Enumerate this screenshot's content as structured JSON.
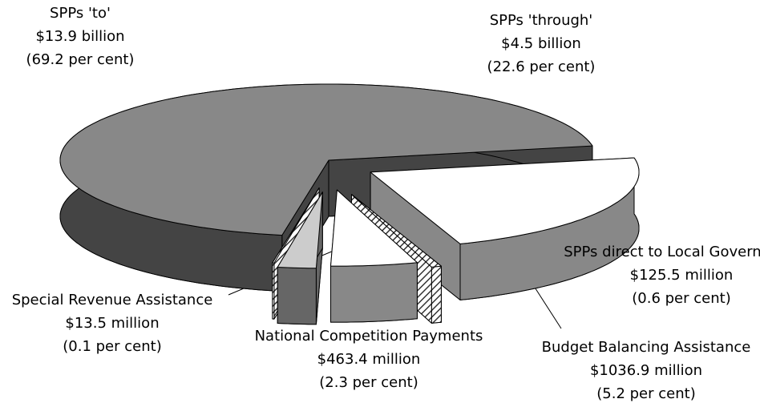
{
  "chart_data": {
    "type": "pie",
    "categories": [
      "SPPs 'to'",
      "SPPs 'through'",
      "SPPs direct to Local Government",
      "Budget Balancing Assistance",
      "National Competition Payments",
      "Special Revenue Assistance"
    ],
    "amounts": [
      "$13.9 billion",
      "$4.5 billion",
      "$125.5 million",
      "$1036.9 million",
      "$463.4 million",
      "$13.5 million"
    ],
    "values": [
      69.2,
      22.6,
      0.6,
      5.2,
      2.3,
      0.1
    ],
    "value_labels": [
      "(69.2 per cent)",
      "(22.6 per cent)",
      "(0.6 per cent)",
      "(5.2 per cent)",
      "(2.3 per cent)",
      "(0.1 per cent)"
    ]
  }
}
